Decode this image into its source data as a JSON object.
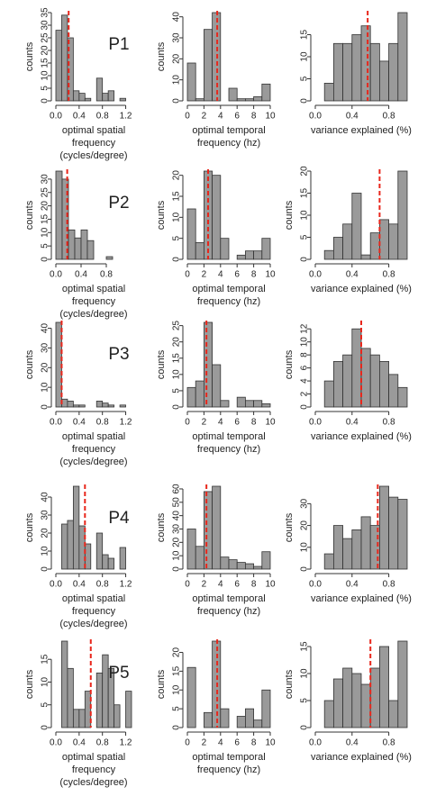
{
  "chart_data": [
    {
      "type": "histogram",
      "annotation": "P1",
      "ylabel": "counts",
      "xlabel": [
        "optimal spatial",
        "frequency",
        "(cycles/degree)"
      ],
      "bins": [
        0,
        0.1,
        0.2,
        0.3,
        0.4,
        0.5,
        0.6,
        0.7,
        0.8,
        0.9,
        1.0,
        1.1,
        1.2
      ],
      "values": [
        28,
        34,
        25,
        4,
        3,
        1,
        0,
        9,
        3,
        4,
        0,
        1
      ],
      "color": "#9a9a9a",
      "xlim": [
        0,
        1.3
      ],
      "ylim": [
        0,
        35
      ],
      "xticks": [
        {
          "value": 0,
          "label": "0.0"
        },
        0.4,
        0.8,
        1.2
      ],
      "yticks": [
        0,
        5,
        10,
        15,
        20,
        25,
        30,
        35
      ],
      "marker": 0.22,
      "marker_color": "#e8261b"
    },
    {
      "type": "histogram",
      "ylabel": "counts",
      "xlabel": [
        "optimal temporal",
        "frequency (hz)"
      ],
      "bins": [
        0,
        1,
        2,
        3,
        4,
        5,
        6,
        7,
        8,
        9,
        10
      ],
      "values": [
        18,
        1,
        34,
        42,
        0,
        6,
        1,
        1,
        2,
        8
      ],
      "color": "#9a9a9a",
      "xlim": [
        0,
        10
      ],
      "ylim": [
        0,
        42
      ],
      "xticks": [
        0,
        2,
        4,
        6,
        8,
        10
      ],
      "yticks": [
        0,
        10,
        20,
        30,
        40
      ],
      "marker": 3.6,
      "marker_color": "#e8261b"
    },
    {
      "type": "histogram",
      "xlabel": [
        "variance explained (%)"
      ],
      "bins": [
        0.1,
        0.2,
        0.3,
        0.4,
        0.5,
        0.6,
        0.7,
        0.8,
        0.9,
        1.0
      ],
      "values": [
        4,
        13,
        13,
        15,
        17,
        13,
        9,
        13,
        20
      ],
      "color": "#9a9a9a",
      "xlim": [
        0,
        1
      ],
      "ylim": [
        0,
        20
      ],
      "xticks": [
        {
          "value": 0,
          "label": "0.0"
        },
        0.4,
        0.8
      ],
      "yticks": [
        0,
        5,
        10,
        15
      ],
      "marker": 0.57,
      "marker_color": "#e8261b"
    },
    {
      "type": "histogram",
      "annotation": "P2",
      "ylabel": "counts",
      "xlabel": [
        "optimal spatial",
        "frequency",
        "(cycles/degree)"
      ],
      "bins": [
        0,
        0.1,
        0.2,
        0.3,
        0.4,
        0.5,
        0.6,
        0.7,
        0.8,
        0.9
      ],
      "values": [
        33,
        30,
        11,
        8,
        11,
        7,
        0,
        0,
        1
      ],
      "color": "#9a9a9a",
      "xlim": [
        0,
        1.2
      ],
      "ylim": [
        0,
        33
      ],
      "xticks": [
        {
          "value": 0,
          "label": "0.0"
        },
        0.4,
        0.8
      ],
      "yticks": [
        0,
        5,
        10,
        15,
        20,
        25,
        30
      ],
      "marker": 0.18,
      "marker_color": "#e8261b"
    },
    {
      "type": "histogram",
      "ylabel": "counts",
      "xlabel": [
        "optimal temporal",
        "frequency (hz)"
      ],
      "bins": [
        0,
        1,
        2,
        3,
        4,
        5,
        6,
        7,
        8,
        9,
        10
      ],
      "values": [
        12,
        4,
        21,
        20,
        5,
        0,
        1,
        2,
        2,
        5
      ],
      "color": "#9a9a9a",
      "xlim": [
        0,
        10
      ],
      "ylim": [
        0,
        21
      ],
      "xticks": [
        0,
        2,
        4,
        6,
        8,
        10
      ],
      "yticks": [
        0,
        5,
        10,
        15,
        20
      ],
      "marker": 2.5,
      "marker_color": "#e8261b"
    },
    {
      "type": "histogram",
      "ylabel": "counts",
      "xlabel": [
        "variance explained (%)"
      ],
      "bins": [
        0.1,
        0.2,
        0.3,
        0.4,
        0.5,
        0.6,
        0.7,
        0.8,
        0.9,
        1.0
      ],
      "values": [
        2,
        5,
        8,
        15,
        1,
        6,
        9,
        8,
        20
      ],
      "color": "#9a9a9a",
      "xlim": [
        0,
        1
      ],
      "ylim": [
        0,
        20
      ],
      "xticks": [
        {
          "value": 0,
          "label": "0.0"
        },
        0.4,
        0.8
      ],
      "yticks": [
        0,
        5,
        10,
        15,
        20
      ],
      "marker": 0.7,
      "marker_color": "#e8261b"
    },
    {
      "type": "histogram",
      "annotation": "P3",
      "ylabel": "counts",
      "xlabel": [
        "optimal spatial",
        "frequency",
        "(cycles/degree)"
      ],
      "bins": [
        0,
        0.1,
        0.2,
        0.3,
        0.4,
        0.5,
        0.6,
        0.7,
        0.8,
        0.9,
        1.0,
        1.1,
        1.2
      ],
      "values": [
        43,
        4,
        3,
        1,
        1,
        0,
        0,
        3,
        2,
        1,
        0,
        1
      ],
      "color": "#9a9a9a",
      "xlim": [
        0,
        1.3
      ],
      "ylim": [
        0,
        43
      ],
      "xticks": [
        {
          "value": 0,
          "label": "0.0"
        },
        0.4,
        0.8,
        1.2
      ],
      "yticks": [
        0,
        10,
        20,
        30,
        40
      ],
      "marker": 0.1,
      "marker_color": "#e8261b"
    },
    {
      "type": "histogram",
      "ylabel": "counts",
      "xlabel": [
        "optimal temporal",
        "frequency (hz)"
      ],
      "bins": [
        0,
        1,
        2,
        3,
        4,
        5,
        6,
        7,
        8,
        9,
        10
      ],
      "values": [
        6,
        8,
        26,
        13,
        2,
        0,
        3,
        2,
        2,
        1
      ],
      "color": "#9a9a9a",
      "xlim": [
        0,
        10
      ],
      "ylim": [
        0,
        26
      ],
      "xticks": [
        0,
        2,
        4,
        6,
        8,
        10
      ],
      "yticks": [
        0,
        5,
        10,
        15,
        20,
        25
      ],
      "marker": 2.3,
      "marker_color": "#e8261b"
    },
    {
      "type": "histogram",
      "ylabel": "counts",
      "xlabel": [
        "variance explained (%)"
      ],
      "bins": [
        0.1,
        0.2,
        0.3,
        0.4,
        0.5,
        0.6,
        0.7,
        0.8,
        0.9,
        1.0
      ],
      "values": [
        4,
        7,
        8,
        12,
        9,
        8,
        7,
        5,
        3
      ],
      "color": "#9a9a9a",
      "xlim": [
        0,
        1
      ],
      "ylim": [
        0,
        13
      ],
      "xticks": [
        {
          "value": 0,
          "label": "0.0"
        },
        0.4,
        0.8
      ],
      "yticks": [
        0,
        2,
        4,
        6,
        8,
        10,
        12
      ],
      "marker": 0.5,
      "marker_color": "#e8261b"
    },
    {
      "type": "histogram",
      "annotation": "P4",
      "ylabel": "counts",
      "xlabel": [
        "optimal spatial",
        "frequency",
        "(cycles/degree)"
      ],
      "bins": [
        0.1,
        0.2,
        0.3,
        0.4,
        0.5,
        0.6,
        0.7,
        0.8,
        0.9,
        1.0,
        1.1,
        1.2
      ],
      "values": [
        25,
        27,
        46,
        24,
        14,
        0,
        20,
        8,
        6,
        0,
        12
      ],
      "color": "#9a9a9a",
      "xlim": [
        0,
        1.3
      ],
      "ylim": [
        0,
        46
      ],
      "xticks": [
        {
          "value": 0,
          "label": "0.0"
        },
        0.4,
        0.8,
        1.2
      ],
      "yticks": [
        0,
        10,
        20,
        30,
        40
      ],
      "marker": 0.5,
      "marker_color": "#e8261b"
    },
    {
      "type": "histogram",
      "ylabel": "counts",
      "xlabel": [
        "optimal temporal",
        "frequency (hz)"
      ],
      "bins": [
        0,
        1,
        2,
        3,
        4,
        5,
        6,
        7,
        8,
        9,
        10
      ],
      "values": [
        30,
        17,
        58,
        62,
        9,
        7,
        5,
        4,
        2,
        13
      ],
      "color": "#9a9a9a",
      "xlim": [
        0,
        10
      ],
      "ylim": [
        0,
        62
      ],
      "xticks": [
        0,
        2,
        4,
        6,
        8,
        10
      ],
      "yticks": [
        0,
        10,
        20,
        30,
        40,
        50,
        60
      ],
      "marker": 2.3,
      "marker_color": "#e8261b"
    },
    {
      "type": "histogram",
      "ylabel": "counts",
      "xlabel": [
        "variance explained (%)"
      ],
      "bins": [
        0.1,
        0.2,
        0.3,
        0.4,
        0.5,
        0.6,
        0.7,
        0.8,
        0.9,
        1.0
      ],
      "values": [
        7,
        20,
        14,
        18,
        24,
        20,
        38,
        33,
        32
      ],
      "color": "#9a9a9a",
      "xlim": [
        0,
        1
      ],
      "ylim": [
        0,
        38
      ],
      "xticks": [
        {
          "value": 0,
          "label": "0.0"
        },
        0.4,
        0.8
      ],
      "yticks": [
        0,
        10,
        20,
        30
      ],
      "marker": 0.68,
      "marker_color": "#e8261b"
    },
    {
      "type": "histogram",
      "annotation": "P5",
      "ylabel": "counts",
      "xlabel": [
        "optimal spatial",
        "frequency",
        "(cycles/degree)"
      ],
      "bins": [
        0.1,
        0.2,
        0.3,
        0.4,
        0.5,
        0.6,
        0.7,
        0.8,
        0.9,
        1.0,
        1.1,
        1.2,
        1.3
      ],
      "values": [
        19,
        13,
        4,
        4,
        8,
        0,
        12,
        16,
        13,
        5,
        0,
        8
      ],
      "color": "#9a9a9a",
      "xlim": [
        0,
        1.3
      ],
      "ylim": [
        0,
        19
      ],
      "xticks": [
        {
          "value": 0,
          "label": "0.0"
        },
        0.4,
        0.8,
        1.2
      ],
      "yticks": [
        0,
        5,
        10,
        15
      ],
      "marker": 0.6,
      "marker_color": "#e8261b"
    },
    {
      "type": "histogram",
      "ylabel": "counts",
      "xlabel": [
        "optimal temporal",
        "frequency (hz)"
      ],
      "bins": [
        0,
        1,
        2,
        3,
        4,
        5,
        6,
        7,
        8,
        9,
        10
      ],
      "values": [
        16,
        0,
        4,
        23,
        5,
        0,
        3,
        5,
        2,
        10
      ],
      "color": "#9a9a9a",
      "xlim": [
        0,
        10
      ],
      "ylim": [
        0,
        23
      ],
      "xticks": [
        0,
        2,
        4,
        6,
        8,
        10
      ],
      "yticks": [
        0,
        5,
        10,
        15,
        20
      ],
      "marker": 3.6,
      "marker_color": "#e8261b"
    },
    {
      "type": "histogram",
      "ylabel": "counts",
      "xlabel": [
        "variance explained (%)"
      ],
      "bins": [
        0.1,
        0.2,
        0.3,
        0.4,
        0.5,
        0.6,
        0.7,
        0.8,
        0.9,
        1.0
      ],
      "values": [
        5,
        9,
        11,
        10,
        8,
        11,
        15,
        5,
        16
      ],
      "color": "#9a9a9a",
      "xlim": [
        0,
        1
      ],
      "ylim": [
        0,
        16
      ],
      "xticks": [
        {
          "value": 0,
          "label": "0.0"
        },
        0.4,
        0.8
      ],
      "yticks": [
        0,
        5,
        10,
        15
      ],
      "marker": 0.6,
      "marker_color": "#e8261b"
    }
  ]
}
